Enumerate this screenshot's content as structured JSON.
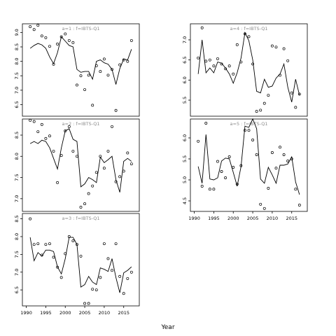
{
  "chart_data": {
    "type": "line",
    "xlabel": "Year",
    "xlim": [
      1989,
      2019
    ],
    "xticks": [
      1990,
      1995,
      2000,
      2005,
      2010,
      2015
    ],
    "panels": [
      {
        "title": "a=1 : f=IBTS-Q1",
        "ylim": [
          6.1,
          9.3
        ],
        "yticks": [
          6.5,
          7.0,
          7.5,
          8.0,
          8.5,
          9.0
        ],
        "line": {
          "x": [
            1991,
            1992,
            1993,
            1994,
            1995,
            1996,
            1997,
            1998,
            1999,
            2000,
            2001,
            2002,
            2003,
            2004,
            2005,
            2006,
            2007,
            2008,
            2009,
            2010,
            2011,
            2012,
            2013,
            2014,
            2015,
            2016,
            2017
          ],
          "y": [
            8.45,
            8.55,
            8.62,
            8.57,
            8.45,
            8.15,
            7.92,
            8.3,
            8.85,
            8.7,
            8.55,
            8.5,
            7.72,
            7.62,
            7.65,
            7.65,
            7.38,
            8.0,
            8.05,
            7.95,
            7.9,
            7.72,
            7.2,
            7.75,
            8.08,
            8.05,
            8.42
          ]
        },
        "points": {
          "x": [
            1991,
            1992,
            1993,
            1994,
            1995,
            1996,
            1997,
            1998,
            1999,
            2000,
            2001,
            2002,
            2003,
            2004,
            2005,
            2006,
            2007,
            2008,
            2009,
            2010,
            2011,
            2012,
            2013,
            2014,
            2015,
            2016,
            2017
          ],
          "y": [
            9.2,
            9.1,
            9.25,
            8.88,
            8.82,
            8.52,
            7.9,
            8.6,
            8.85,
            8.95,
            8.72,
            8.65,
            7.18,
            7.5,
            7.02,
            7.52,
            6.48,
            7.85,
            7.65,
            8.08,
            7.52,
            7.72,
            6.3,
            7.88,
            8.05,
            8.0,
            8.72
          ]
        }
      },
      {
        "title": "a=2 : f=IBTS-Q1",
        "ylim": [
          6.7,
          8.88
        ],
        "yticks": [
          7.0,
          7.5,
          8.0,
          8.5
        ],
        "line": {
          "x": [
            1991,
            1992,
            1993,
            1994,
            1995,
            1996,
            1997,
            1998,
            1999,
            2000,
            2001,
            2002,
            2003,
            2004,
            2005,
            2006,
            2007,
            2008,
            2009,
            2010,
            2011,
            2012,
            2013,
            2014,
            2015,
            2016,
            2017
          ],
          "y": [
            8.3,
            8.35,
            8.3,
            8.38,
            8.35,
            8.2,
            7.95,
            7.7,
            8.2,
            8.6,
            8.65,
            8.4,
            8.35,
            7.28,
            7.35,
            7.5,
            7.45,
            7.38,
            7.98,
            7.85,
            7.92,
            8.0,
            7.45,
            7.15,
            7.88,
            7.95,
            7.88
          ]
        },
        "points": {
          "x": [
            1991,
            1992,
            1993,
            1994,
            1995,
            1996,
            1997,
            1998,
            1999,
            2000,
            2001,
            2002,
            2003,
            2004,
            2005,
            2006,
            2007,
            2008,
            2009,
            2010,
            2011,
            2012,
            2013,
            2014,
            2015,
            2016,
            2017
          ],
          "y": [
            8.85,
            8.82,
            8.58,
            8.75,
            8.42,
            8.48,
            8.12,
            7.38,
            8.02,
            8.6,
            8.7,
            8.12,
            8.0,
            6.8,
            6.88,
            7.12,
            7.3,
            7.62,
            8.0,
            7.72,
            8.12,
            8.7,
            7.4,
            7.52,
            7.65,
            8.08,
            7.82
          ]
        }
      },
      {
        "title": "a=3 : f=IBTS-Q1",
        "ylim": [
          6.05,
          8.65
        ],
        "yticks": [
          6.5,
          7.0,
          7.5,
          8.0,
          8.5
        ],
        "line": {
          "x": [
            1991,
            1992,
            1993,
            1994,
            1995,
            1996,
            1997,
            1998,
            1999,
            2000,
            2001,
            2002,
            2003,
            2004,
            2005,
            2006,
            2007,
            2008,
            2009,
            2010,
            2011,
            2012,
            2013,
            2014,
            2015,
            2016,
            2017
          ],
          "y": [
            7.98,
            7.32,
            7.55,
            7.45,
            7.62,
            7.62,
            7.58,
            7.15,
            6.95,
            7.38,
            7.98,
            7.98,
            7.78,
            6.58,
            6.65,
            6.88,
            6.72,
            6.65,
            7.12,
            7.08,
            7.02,
            7.38,
            6.85,
            6.42,
            6.98,
            7.05,
            7.15
          ]
        },
        "points": {
          "x": [
            1991,
            1992,
            1993,
            1994,
            1995,
            1996,
            1997,
            1998,
            1999,
            2000,
            2001,
            2002,
            2003,
            2004,
            2005,
            2006,
            2007,
            2008,
            2009,
            2010,
            2011,
            2012,
            2013,
            2014,
            2015,
            2016,
            2017
          ],
          "y": [
            8.5,
            7.78,
            7.8,
            7.48,
            7.78,
            7.8,
            7.42,
            7.14,
            6.85,
            7.52,
            8.0,
            7.88,
            7.78,
            7.45,
            6.12,
            6.12,
            6.52,
            6.5,
            6.85,
            7.8,
            7.38,
            7.05,
            7.8,
            6.88,
            6.4,
            6.82,
            7.0
          ]
        }
      },
      {
        "title": "a=4 : f=IBTS-Q1",
        "ylim": [
          5.1,
          7.4
        ],
        "yticks": [
          5.5,
          6.0,
          6.5,
          7.0
        ],
        "line": {
          "x": [
            1991,
            1992,
            1993,
            1994,
            1995,
            1996,
            1997,
            1998,
            1999,
            2000,
            2001,
            2002,
            2003,
            2004,
            2005,
            2006,
            2007,
            2008,
            2009,
            2010,
            2011,
            2012,
            2013,
            2014,
            2015,
            2016,
            2017
          ],
          "y": [
            6.15,
            7.0,
            6.18,
            6.3,
            6.18,
            6.45,
            6.42,
            6.3,
            6.15,
            5.92,
            6.18,
            6.55,
            7.18,
            6.98,
            6.5,
            5.72,
            5.68,
            6.02,
            5.82,
            5.85,
            6.05,
            6.15,
            6.4,
            5.82,
            5.45,
            6.02,
            5.62
          ]
        },
        "points": {
          "x": [
            1991,
            1992,
            1993,
            1994,
            1995,
            1996,
            1997,
            1998,
            1999,
            2000,
            2001,
            2002,
            2003,
            2004,
            2005,
            2006,
            2007,
            2008,
            2009,
            2010,
            2011,
            2012,
            2013,
            2014,
            2015,
            2016,
            2017
          ],
          "y": [
            6.55,
            7.3,
            6.47,
            6.5,
            6.35,
            6.53,
            6.4,
            6.28,
            6.35,
            6.15,
            6.88,
            6.45,
            7.15,
            7.08,
            6.4,
            5.22,
            5.25,
            5.42,
            5.62,
            6.85,
            6.82,
            6.12,
            6.78,
            6.48,
            5.68,
            5.32,
            5.65
          ]
        }
      },
      {
        "title": "a=5 : f=IBTS-Q1",
        "ylim": [
          4.25,
          6.45
        ],
        "yticks": [
          4.5,
          5.0,
          5.5,
          6.0
        ],
        "line": {
          "x": [
            1991,
            1992,
            1993,
            1994,
            1995,
            1996,
            1997,
            1998,
            1999,
            2000,
            2001,
            2002,
            2003,
            2004,
            2005,
            2006,
            2007,
            2008,
            2009,
            2010,
            2011,
            2012,
            2013,
            2014,
            2015,
            2016,
            2017
          ],
          "y": [
            5.32,
            4.92,
            6.08,
            5.02,
            5.0,
            5.05,
            5.45,
            5.52,
            5.5,
            5.18,
            4.85,
            5.32,
            6.28,
            6.25,
            6.45,
            6.22,
            5.02,
            4.92,
            5.3,
            5.12,
            4.92,
            5.35,
            5.35,
            5.38,
            5.55,
            4.95,
            4.65
          ]
        },
        "points": {
          "x": [
            1991,
            1992,
            1993,
            1994,
            1995,
            1996,
            1997,
            1998,
            1999,
            2000,
            2001,
            2002,
            2003,
            2004,
            2005,
            2006,
            2007,
            2008,
            2009,
            2010,
            2011,
            2012,
            2013,
            2014,
            2015,
            2016,
            2017
          ],
          "y": [
            5.92,
            4.85,
            6.35,
            4.78,
            4.78,
            5.44,
            5.2,
            5.05,
            5.55,
            5.3,
            4.9,
            5.34,
            6.18,
            6.18,
            5.95,
            5.6,
            4.42,
            4.32,
            4.8,
            5.65,
            5.28,
            5.78,
            5.6,
            5.45,
            5.5,
            4.78,
            4.4
          ]
        }
      }
    ]
  }
}
